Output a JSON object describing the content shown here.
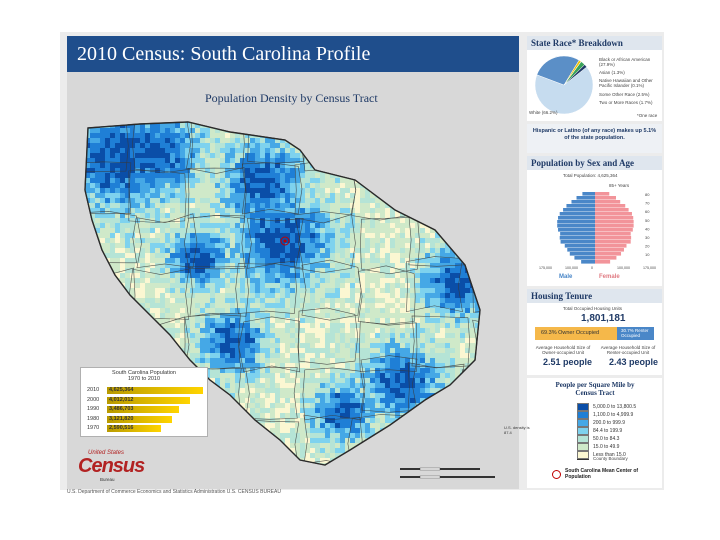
{
  "header": {
    "title": "2010 Census: South Carolina Profile"
  },
  "map": {
    "title": "Population Density by Census Tract"
  },
  "population_box": {
    "title_line1": "South Carolina Population",
    "title_line2": "1970 to 2010",
    "rows": [
      {
        "year": "2010",
        "value": "4,625,364",
        "population": 4625364
      },
      {
        "year": "2000",
        "value": "4,012,012",
        "population": 4012012
      },
      {
        "year": "1990",
        "value": "3,486,703",
        "population": 3486703
      },
      {
        "year": "1980",
        "value": "3,121,820",
        "population": 3121820
      },
      {
        "year": "1970",
        "value": "2,590,516",
        "population": 2590516
      }
    ]
  },
  "logo": {
    "top": "United States",
    "main": "Census",
    "sub": "Bureau"
  },
  "footer": {
    "note": "U.S. Department of Commerce  Economics and Statistics Administration  U.S. CENSUS BUREAU"
  },
  "race_panel": {
    "title": "State Race* Breakdown",
    "labels": [
      "Black or African American (27.9%)",
      "Asian (1.3%)",
      "Native Hawaiian and Other Pacific Islander (0.1%)",
      "Some Other Race (2.5%)",
      "White (66.2%)",
      "Two or More Races (1.7%)"
    ],
    "note": "*One race",
    "slices": [
      {
        "name": "White",
        "pct": 66.2,
        "color": "#c6dcef"
      },
      {
        "name": "Black or African American",
        "pct": 27.9,
        "color": "#5b8fc7"
      },
      {
        "name": "Asian",
        "pct": 1.3,
        "color": "#f2c200"
      },
      {
        "name": "Native Hawaiian and Other Pacific Islander",
        "pct": 0.1,
        "color": "#7a4a9c"
      },
      {
        "name": "Some Other Race",
        "pct": 2.5,
        "color": "#3aa35a"
      },
      {
        "name": "Two or More Races",
        "pct": 1.7,
        "color": "#1f3a66"
      }
    ]
  },
  "hispanic": {
    "text": "Hispanic or Latino (of any race) makes up 5.1% of the state population."
  },
  "sex_age": {
    "title": "Population by Sex and Age",
    "total": "Total Population: 4,625,364",
    "age_top": "85+ Years",
    "male_label": "Male",
    "female_label": "Female",
    "age_ticks": [
      "80",
      "70",
      "60",
      "50",
      "40",
      "30",
      "20",
      "10"
    ],
    "x_ticks": [
      "175,000",
      "100,000",
      "0",
      "100,000",
      "175,000"
    ],
    "colors": {
      "male": "#4a87c8",
      "female": "#f2949a"
    },
    "male": [
      0.33,
      0.49,
      0.6,
      0.66,
      0.72,
      0.82,
      0.84,
      0.83,
      0.88,
      0.9,
      0.9,
      0.88,
      0.84,
      0.76,
      0.68,
      0.56,
      0.44,
      0.3
    ],
    "female": [
      0.36,
      0.51,
      0.62,
      0.69,
      0.75,
      0.85,
      0.86,
      0.85,
      0.9,
      0.92,
      0.92,
      0.91,
      0.88,
      0.8,
      0.72,
      0.6,
      0.5,
      0.34
    ]
  },
  "tenure": {
    "title": "Housing Tenure",
    "total_label": "Total Occupied Housing Units",
    "total": "1,801,181",
    "owner": {
      "label": "69.3% Owner Occupied",
      "pct": 69.3,
      "color": "#f5b84a"
    },
    "renter": {
      "label": "30.7% Renter Occupied",
      "pct": 30.7,
      "color": "#4a87c8"
    },
    "owner_size_label": "Average Household Size of Owner-occupied Unit",
    "owner_size": "2.51 people",
    "renter_size_label": "Average Household Size of Renter-occupied Unit",
    "renter_size": "2.43 people"
  },
  "density_legend": {
    "title": "People per Square Mile by Census Tract",
    "items": [
      {
        "label": "5,000.0 to 13,800.5",
        "color": "#0a4ea8"
      },
      {
        "label": "1,100.0 to 4,999.9",
        "color": "#1f7fd6"
      },
      {
        "label": "200.0 to 999.9",
        "color": "#45a8e6"
      },
      {
        "label": "84.4 to 199.9",
        "color": "#7ed2ee"
      },
      {
        "label": "50.0 to 84.3",
        "color": "#b5e4d6"
      },
      {
        "label": "15.0 to 49.9",
        "color": "#cfe9c9"
      },
      {
        "label": "Less than 15.0",
        "color": "#fbf7d2"
      }
    ],
    "county_boundary": "County Boundary",
    "mean_center": "South Carolina Mean Center of Population",
    "us_density": "U.S. density is 87.4"
  },
  "map_colors": {
    "state_fill": "#a8dbc4",
    "county_line": "#3a3a3a",
    "water": "#9fcbe8"
  }
}
